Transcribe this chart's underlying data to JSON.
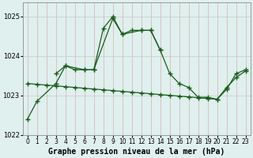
{
  "xlabel": "Graphe pression niveau de la mer (hPa)",
  "hours": [
    0,
    1,
    2,
    3,
    4,
    5,
    6,
    7,
    8,
    9,
    10,
    11,
    12,
    13,
    14,
    15,
    16,
    17,
    18,
    19,
    20,
    21,
    22,
    23
  ],
  "line1_x": [
    0,
    1,
    3,
    4,
    5,
    6,
    7,
    9,
    10,
    11,
    12,
    13,
    14
  ],
  "line1_y": [
    1022.4,
    1022.85,
    1023.3,
    1023.75,
    1023.65,
    1023.65,
    1023.65,
    1024.95,
    1024.55,
    1024.65,
    1024.65,
    1024.65,
    1024.15
  ],
  "line2_x": [
    3,
    4,
    6,
    7,
    8,
    9,
    10,
    12,
    13,
    14,
    15,
    16,
    17,
    18,
    19,
    20,
    21,
    22,
    23
  ],
  "line2_y": [
    1023.55,
    1023.75,
    1023.65,
    1023.65,
    1024.7,
    1025.0,
    1024.55,
    1024.65,
    1024.65,
    1024.15,
    1023.55,
    1023.3,
    1023.2,
    1022.95,
    1022.95,
    1022.9,
    1023.15,
    1023.55,
    1023.65
  ],
  "line3_x": [
    0,
    1,
    2,
    3,
    4,
    5,
    6,
    7,
    8,
    9,
    10,
    11,
    12,
    13,
    14,
    15,
    16,
    17,
    18,
    19,
    20,
    21,
    22,
    23
  ],
  "line3_y": [
    1023.3,
    1023.28,
    1023.26,
    1023.24,
    1023.22,
    1023.2,
    1023.18,
    1023.16,
    1023.14,
    1023.12,
    1023.1,
    1023.08,
    1023.06,
    1023.04,
    1023.02,
    1023.0,
    1022.98,
    1022.96,
    1022.94,
    1022.92,
    1022.9,
    1023.2,
    1023.45,
    1023.62
  ],
  "ylim": [
    1022.0,
    1025.35
  ],
  "yticks": [
    1022,
    1023,
    1024,
    1025
  ],
  "bg_color": "#dff0ee",
  "plot_bg": "#dff0ee",
  "line_color": "#1a5c1a",
  "grid_color_v": "#d8b0b0",
  "grid_color_h": "#c8c8c8",
  "border_color": "#999999",
  "xlabel_fontsize": 7,
  "tick_fontsize": 5.5
}
